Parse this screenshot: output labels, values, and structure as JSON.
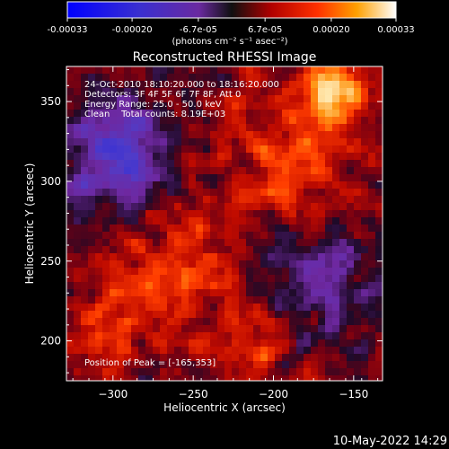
{
  "colorbar": {
    "ticks": [
      "-0.00033",
      "-0.00020",
      "-6.7e-05",
      "6.7e-05",
      "0.00020",
      "0.00033"
    ],
    "unit_label": "(photons cm⁻² s⁻¹ asec⁻²)"
  },
  "chart_data": {
    "type": "heatmap",
    "title": "Reconstructed RHESSI Image",
    "xlabel": "Heliocentric X (arcsec)",
    "ylabel": "Heliocentric Y (arcsec)",
    "xlim": [
      -329,
      -132
    ],
    "ylim": [
      175,
      372
    ],
    "xticks": [
      -300,
      -250,
      -200,
      -150
    ],
    "yticks": [
      200,
      250,
      300,
      350
    ],
    "colorbar_range": [
      -0.00033,
      0.00033
    ],
    "colormap": "blue-purple-red-orange-yellow-white",
    "peak": [
      -165,
      353
    ],
    "annotations": [
      "24-Oct-2010 18:10:20.000 to 18:16:20.000",
      "Detectors: 3F 4F 5F 6F 7F 8F, Att 0",
      "Energy Range: 25.0 - 50.0 keV",
      "Clean    Total counts: 8.19E+03",
      "Position of Peak = [-165,353]"
    ]
  },
  "timestamp": "10-May-2022 14:29"
}
